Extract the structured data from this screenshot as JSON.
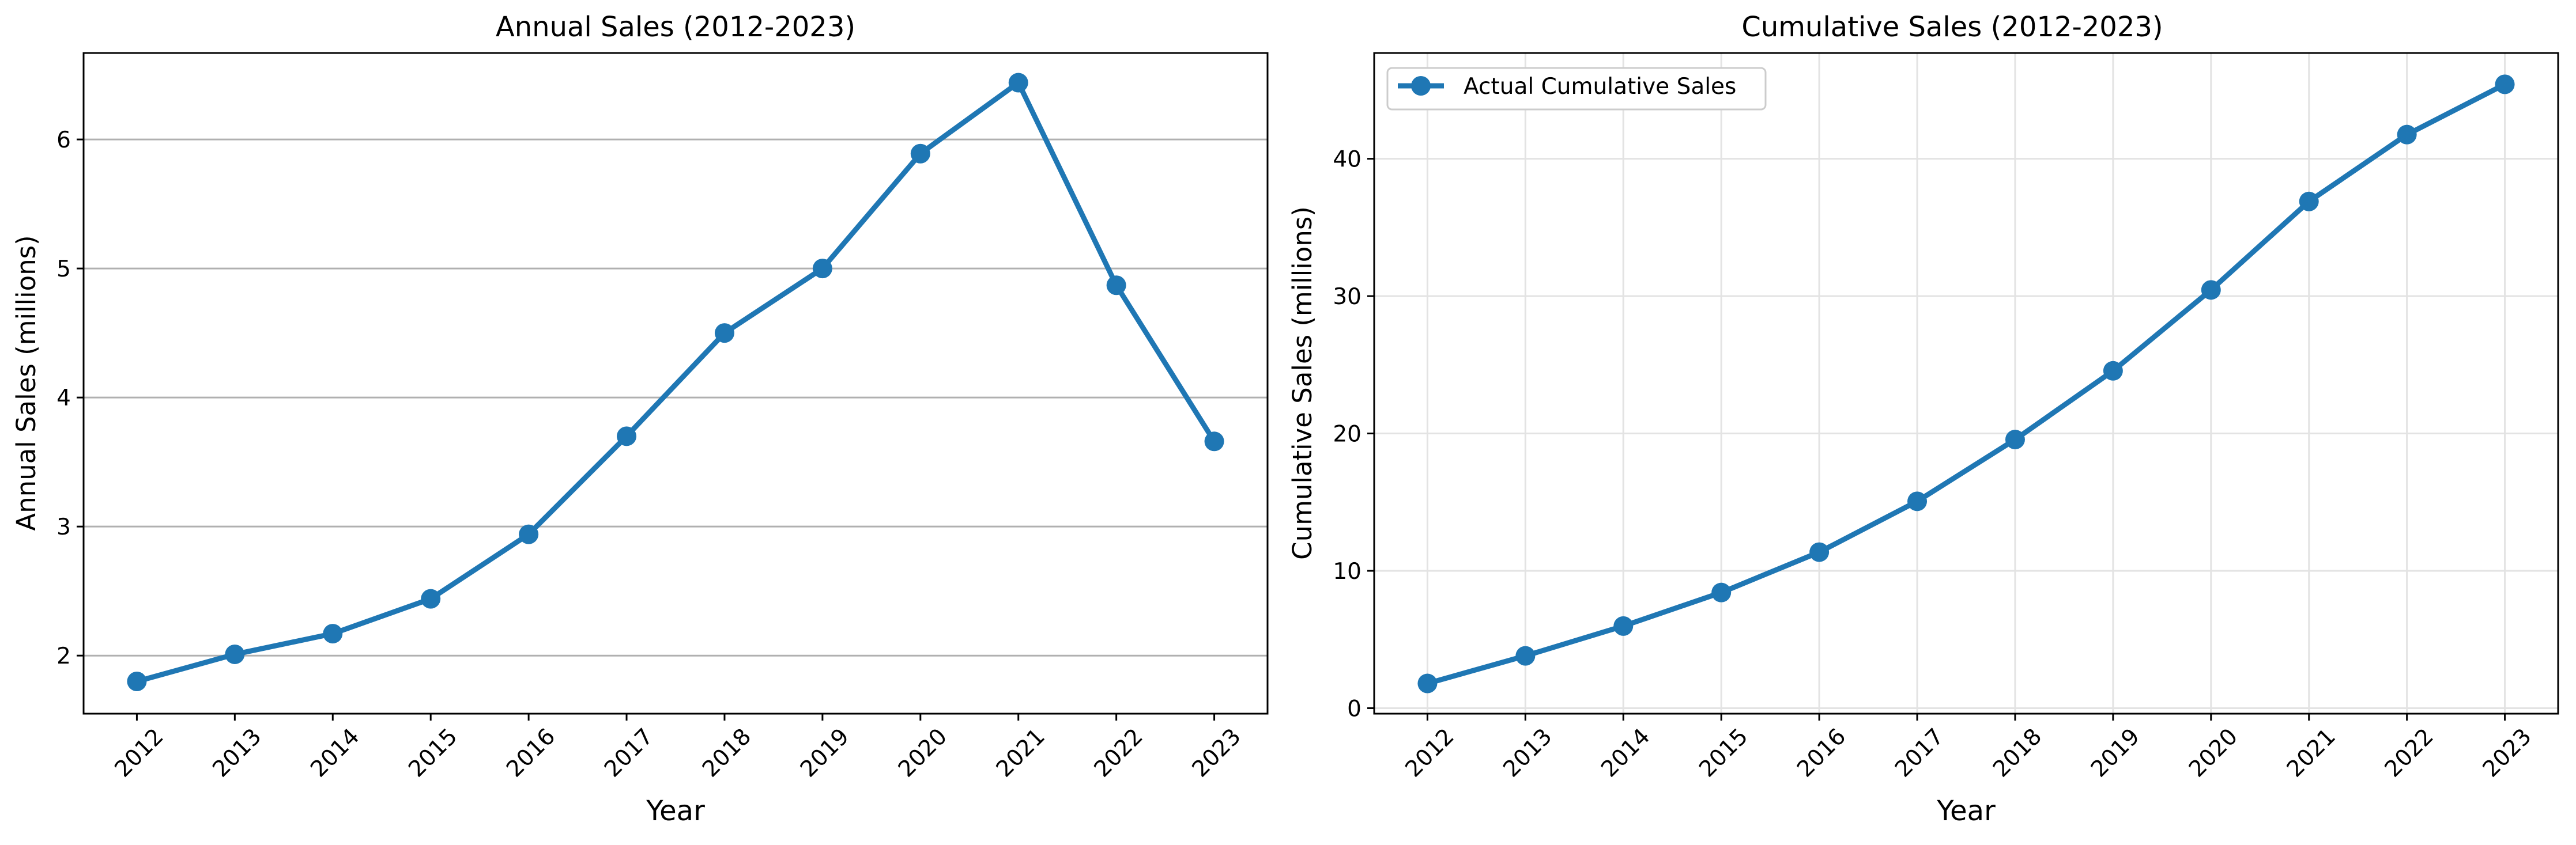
{
  "chart_data": [
    {
      "type": "line",
      "title": "Annual Sales (2012-2023)",
      "xlabel": "Year",
      "ylabel": "Annual Sales (millions)",
      "x": [
        "2012",
        "2013",
        "2014",
        "2015",
        "2016",
        "2017",
        "2018",
        "2019",
        "2020",
        "2021",
        "2022",
        "2023"
      ],
      "series": [
        {
          "values": [
            1.8,
            2.01,
            2.17,
            2.44,
            2.94,
            3.7,
            4.5,
            5.0,
            5.89,
            6.44,
            4.87,
            3.66
          ]
        }
      ],
      "ylim": [
        1.55,
        6.67
      ],
      "yticks": [
        2,
        3,
        4,
        5,
        6
      ],
      "grid": "y-axis only",
      "legend": "none",
      "color": "#1f77b4",
      "marker": "circle"
    },
    {
      "type": "line",
      "title": "Cumulative Sales (2012-2023)",
      "xlabel": "Year",
      "ylabel": "Cumulative Sales (millions)",
      "x": [
        "2012",
        "2013",
        "2014",
        "2015",
        "2016",
        "2017",
        "2018",
        "2019",
        "2020",
        "2021",
        "2022",
        "2023"
      ],
      "series": [
        {
          "name": "Actual Cumulative Sales",
          "values": [
            1.8,
            3.81,
            5.98,
            8.42,
            11.36,
            15.06,
            19.56,
            24.56,
            30.45,
            36.89,
            41.76,
            45.42
          ]
        }
      ],
      "ylim": [
        -0.4,
        47.7
      ],
      "yticks": [
        0,
        10,
        20,
        30,
        40
      ],
      "grid": "both axes, light",
      "legend": "top-left",
      "color": "#1f77b4",
      "marker": "circle"
    }
  ]
}
